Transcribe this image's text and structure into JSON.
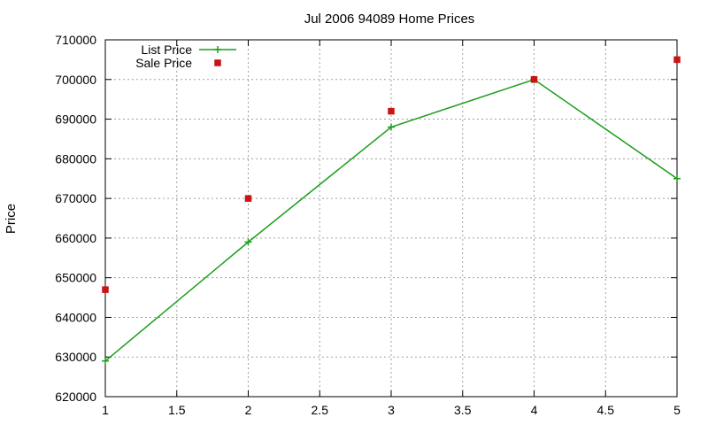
{
  "chart_data": {
    "type": "line",
    "title": "Jul 2006 94089 Home Prices",
    "xlabel": "",
    "ylabel": "Price",
    "xlim": [
      1,
      5
    ],
    "ylim": [
      620000,
      710000
    ],
    "xticks": [
      "1",
      "1.5",
      "2",
      "2.5",
      "3",
      "3.5",
      "4",
      "4.5",
      "5"
    ],
    "yticks": [
      "620000",
      "630000",
      "640000",
      "650000",
      "660000",
      "670000",
      "680000",
      "690000",
      "700000",
      "710000"
    ],
    "grid": true,
    "legend": "top-left",
    "series": [
      {
        "name": "List Price",
        "type": "line",
        "marker": "plus",
        "color": "#1a9e1a",
        "points": [
          {
            "x": 1,
            "y": 629000
          },
          {
            "x": 2,
            "y": 659000
          },
          {
            "x": 3,
            "y": 688000
          },
          {
            "x": 4,
            "y": 700000
          },
          {
            "x": 5,
            "y": 675000
          }
        ]
      },
      {
        "name": "Sale Price",
        "type": "scatter",
        "marker": "square",
        "color": "#c81414",
        "points": [
          {
            "x": 1,
            "y": 647000
          },
          {
            "x": 2,
            "y": 670000
          },
          {
            "x": 3,
            "y": 692000
          },
          {
            "x": 4,
            "y": 700000
          },
          {
            "x": 5,
            "y": 705000
          }
        ]
      }
    ]
  }
}
